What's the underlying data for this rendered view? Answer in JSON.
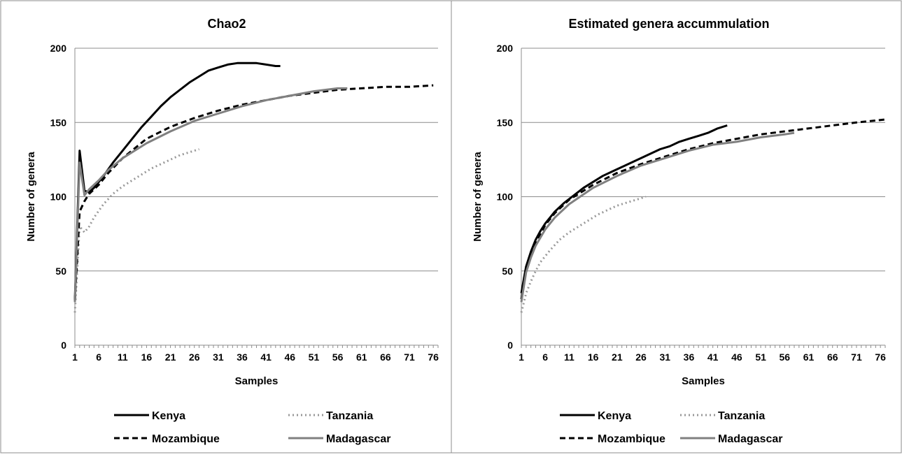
{
  "chart_data": [
    {
      "type": "line",
      "title": "Chao2",
      "xlabel": "Samples",
      "ylabel": "Number of genera",
      "xlim": [
        1,
        77
      ],
      "ylim": [
        0,
        200
      ],
      "x_ticks": [
        "1",
        "6",
        "11",
        "16",
        "21",
        "26",
        "31",
        "36",
        "41",
        "46",
        "51",
        "56",
        "61",
        "66",
        "71",
        "76"
      ],
      "y_ticks": [
        "0",
        "50",
        "100",
        "150",
        "200"
      ],
      "grid": "horizontal",
      "legend_position": "bottom",
      "series": [
        {
          "name": "Kenya",
          "style": "solid",
          "color": "#000000",
          "x": [
            1,
            2,
            3,
            4,
            5,
            7,
            9,
            11,
            13,
            15,
            17,
            19,
            21,
            23,
            25,
            27,
            29,
            31,
            33,
            35,
            37,
            39,
            41,
            43,
            44
          ],
          "y": [
            30,
            131,
            104,
            103,
            106,
            114,
            123,
            131,
            139,
            147,
            154,
            161,
            167,
            172,
            177,
            181,
            185,
            187,
            189,
            190,
            190,
            190,
            189,
            188,
            188
          ]
        },
        {
          "name": "Tanzania",
          "style": "dotted",
          "color": "#999999",
          "x": [
            1,
            2,
            3,
            4,
            5,
            7,
            9,
            11,
            13,
            15,
            17,
            19,
            21,
            23,
            25,
            27
          ],
          "y": [
            22,
            80,
            76,
            80,
            86,
            95,
            102,
            107,
            111,
            115,
            119,
            122,
            125,
            128,
            130,
            132
          ]
        },
        {
          "name": "Mozambique",
          "style": "dashed",
          "color": "#000000",
          "x": [
            1,
            2,
            3,
            4,
            6,
            8,
            11,
            16,
            21,
            26,
            31,
            36,
            41,
            46,
            51,
            56,
            61,
            66,
            71,
            76
          ],
          "y": [
            30,
            90,
            97,
            102,
            108,
            116,
            126,
            139,
            147,
            153,
            158,
            162,
            165,
            168,
            170,
            172,
            173,
            174,
            174,
            175
          ]
        },
        {
          "name": "Madagascar",
          "style": "solid",
          "color": "#808080",
          "x": [
            1,
            2,
            3,
            4,
            6,
            8,
            11,
            16,
            21,
            26,
            31,
            36,
            41,
            46,
            51,
            56,
            58
          ],
          "y": [
            29,
            123,
            101,
            105,
            111,
            118,
            126,
            136,
            144,
            151,
            156,
            161,
            165,
            168,
            171,
            173,
            173
          ]
        }
      ]
    },
    {
      "type": "line",
      "title": "Estimated genera accummulation",
      "xlabel": "Samples",
      "ylabel": "Number of genera",
      "xlim": [
        1,
        77
      ],
      "ylim": [
        0,
        200
      ],
      "x_ticks": [
        "1",
        "6",
        "11",
        "16",
        "21",
        "26",
        "31",
        "36",
        "41",
        "46",
        "51",
        "56",
        "61",
        "66",
        "71",
        "76"
      ],
      "y_ticks": [
        "0",
        "50",
        "100",
        "150",
        "200"
      ],
      "grid": "horizontal",
      "legend_position": "bottom",
      "series": [
        {
          "name": "Kenya",
          "style": "solid",
          "color": "#000000",
          "x": [
            1,
            2,
            3,
            4,
            5,
            6,
            8,
            10,
            12,
            14,
            16,
            18,
            20,
            22,
            24,
            26,
            28,
            30,
            32,
            34,
            36,
            38,
            40,
            42,
            44
          ],
          "y": [
            35,
            53,
            63,
            71,
            77,
            82,
            90,
            96,
            101,
            106,
            110,
            114,
            117,
            120,
            123,
            126,
            129,
            132,
            134,
            137,
            139,
            141,
            143,
            146,
            148
          ]
        },
        {
          "name": "Tanzania",
          "style": "dotted",
          "color": "#999999",
          "x": [
            1,
            2,
            3,
            4,
            5,
            7,
            9,
            11,
            13,
            15,
            17,
            19,
            21,
            23,
            25,
            27
          ],
          "y": [
            22,
            35,
            43,
            50,
            56,
            64,
            71,
            76,
            80,
            84,
            88,
            91,
            94,
            96,
            98,
            100
          ]
        },
        {
          "name": "Mozambique",
          "style": "dashed",
          "color": "#000000",
          "x": [
            1,
            2,
            3,
            4,
            6,
            8,
            11,
            16,
            21,
            26,
            31,
            36,
            41,
            46,
            51,
            56,
            61,
            66,
            71,
            77
          ],
          "y": [
            31,
            52,
            62,
            69,
            81,
            89,
            98,
            108,
            116,
            122,
            127,
            132,
            136,
            139,
            142,
            144,
            146,
            148,
            150,
            152
          ]
        },
        {
          "name": "Madagascar",
          "style": "solid",
          "color": "#808080",
          "x": [
            1,
            2,
            3,
            4,
            6,
            8,
            11,
            16,
            21,
            26,
            31,
            36,
            41,
            46,
            51,
            56,
            58
          ],
          "y": [
            29,
            49,
            59,
            67,
            78,
            86,
            95,
            106,
            114,
            121,
            126,
            131,
            135,
            137,
            140,
            142,
            143
          ]
        }
      ]
    }
  ]
}
